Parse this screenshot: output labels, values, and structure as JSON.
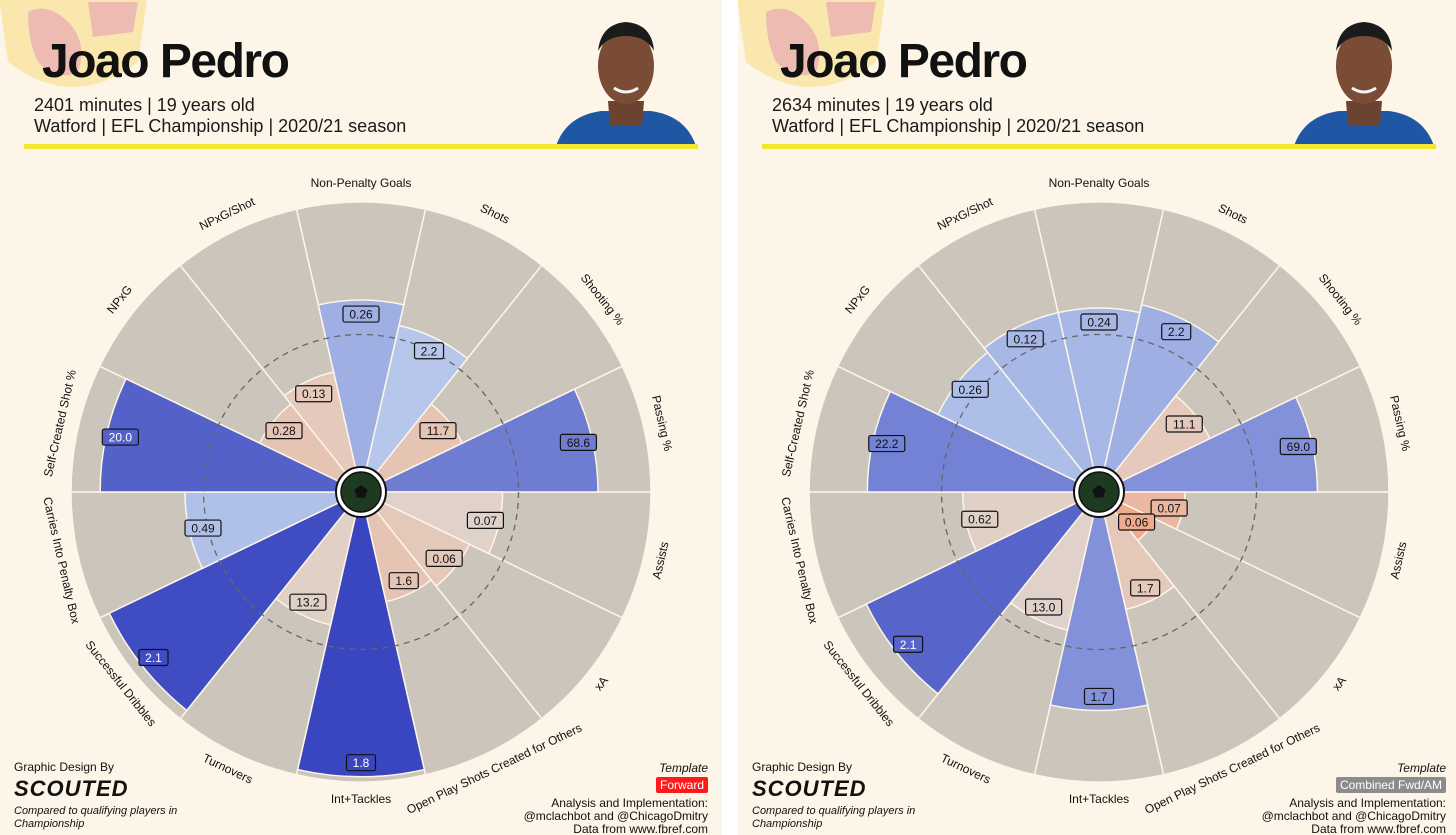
{
  "panels": [
    {
      "player_name": "Joao Pedro",
      "minutes_line": "2401 minutes | 19 years old",
      "team_line": "Watford | EFL Championship | 2020/21 season",
      "credit_label": "Graphic Design By",
      "brand": "SCOUTED",
      "compared_note": "Compared to qualifying players in Championship",
      "template_label": "Template",
      "template_value": "Forward",
      "template_color": "#ff1a1a",
      "analysis_label": "Analysis and Implementation:",
      "analysis_authors": "@mclachbot and @ChicagoDmitry",
      "data_source": "Data from www.fbref.com"
    },
    {
      "player_name": "Joao Pedro",
      "minutes_line": "2634 minutes | 19 years old",
      "team_line": "Watford | EFL Championship | 2020/21 season",
      "credit_label": "Graphic Design By",
      "brand": "SCOUTED",
      "compared_note": "Compared to qualifying players in Championship",
      "template_label": "Template",
      "template_value": "Combined Fwd/AM",
      "template_color": "#8c8c8c",
      "analysis_label": "Analysis and Implementation:",
      "analysis_authors": "@mclachbot and @ChicagoDmitry",
      "data_source": "Data from www.fbref.com"
    }
  ],
  "chart_data": [
    {
      "type": "radar",
      "slices": [
        {
          "metric": "Non-Penalty Goals",
          "value": "0.26",
          "percentile": 63
        },
        {
          "metric": "Shots",
          "value": "2.2",
          "percentile": 55
        },
        {
          "metric": "Shooting %",
          "value": "11.7",
          "percentile": 33
        },
        {
          "metric": "Passing %",
          "value": "68.6",
          "percentile": 80
        },
        {
          "metric": "Assists",
          "value": "0.07",
          "percentile": 44
        },
        {
          "metric": "xA",
          "value": "0.06",
          "percentile": 36
        },
        {
          "metric": "Open Play Shots Created for Others",
          "value": "1.6",
          "percentile": 33
        },
        {
          "metric": "Int+Tackles",
          "value": "1.8",
          "percentile": 98
        },
        {
          "metric": "Turnovers",
          "value": "13.2",
          "percentile": 42
        },
        {
          "metric": "Successful Dribbles",
          "value": "2.1",
          "percentile": 96
        },
        {
          "metric": "Carries Into Penalty Box",
          "value": "0.49",
          "percentile": 57
        },
        {
          "metric": "Self-Created Shot %",
          "value": "20.0",
          "percentile": 89
        },
        {
          "metric": "NPxG",
          "value": "0.28",
          "percentile": 33
        },
        {
          "metric": "NPxG/Shot",
          "value": "0.13",
          "percentile": 37
        }
      ]
    },
    {
      "type": "radar",
      "slices": [
        {
          "metric": "Non-Penalty Goals",
          "value": "0.24",
          "percentile": 60
        },
        {
          "metric": "Shots",
          "value": "2.2",
          "percentile": 63
        },
        {
          "metric": "Shooting %",
          "value": "11.1",
          "percentile": 37
        },
        {
          "metric": "Passing %",
          "value": "69.0",
          "percentile": 73
        },
        {
          "metric": "Assists",
          "value": "0.07",
          "percentile": 23
        },
        {
          "metric": "xA",
          "value": "0.06",
          "percentile": 14
        },
        {
          "metric": "Open Play Shots Created for Others",
          "value": "1.7",
          "percentile": 36
        },
        {
          "metric": "Int+Tackles",
          "value": "1.7",
          "percentile": 73
        },
        {
          "metric": "Turnovers",
          "value": "13.0",
          "percentile": 44
        },
        {
          "metric": "Successful Dribbles",
          "value": "2.1",
          "percentile": 88
        },
        {
          "metric": "Carries Into Penalty Box",
          "value": "0.62",
          "percentile": 42
        },
        {
          "metric": "Self-Created Shot %",
          "value": "22.2",
          "percentile": 78
        },
        {
          "metric": "NPxG",
          "value": "0.26",
          "percentile": 58
        },
        {
          "metric": "NPxG/Shot",
          "value": "0.12",
          "percentile": 60
        }
      ]
    }
  ]
}
